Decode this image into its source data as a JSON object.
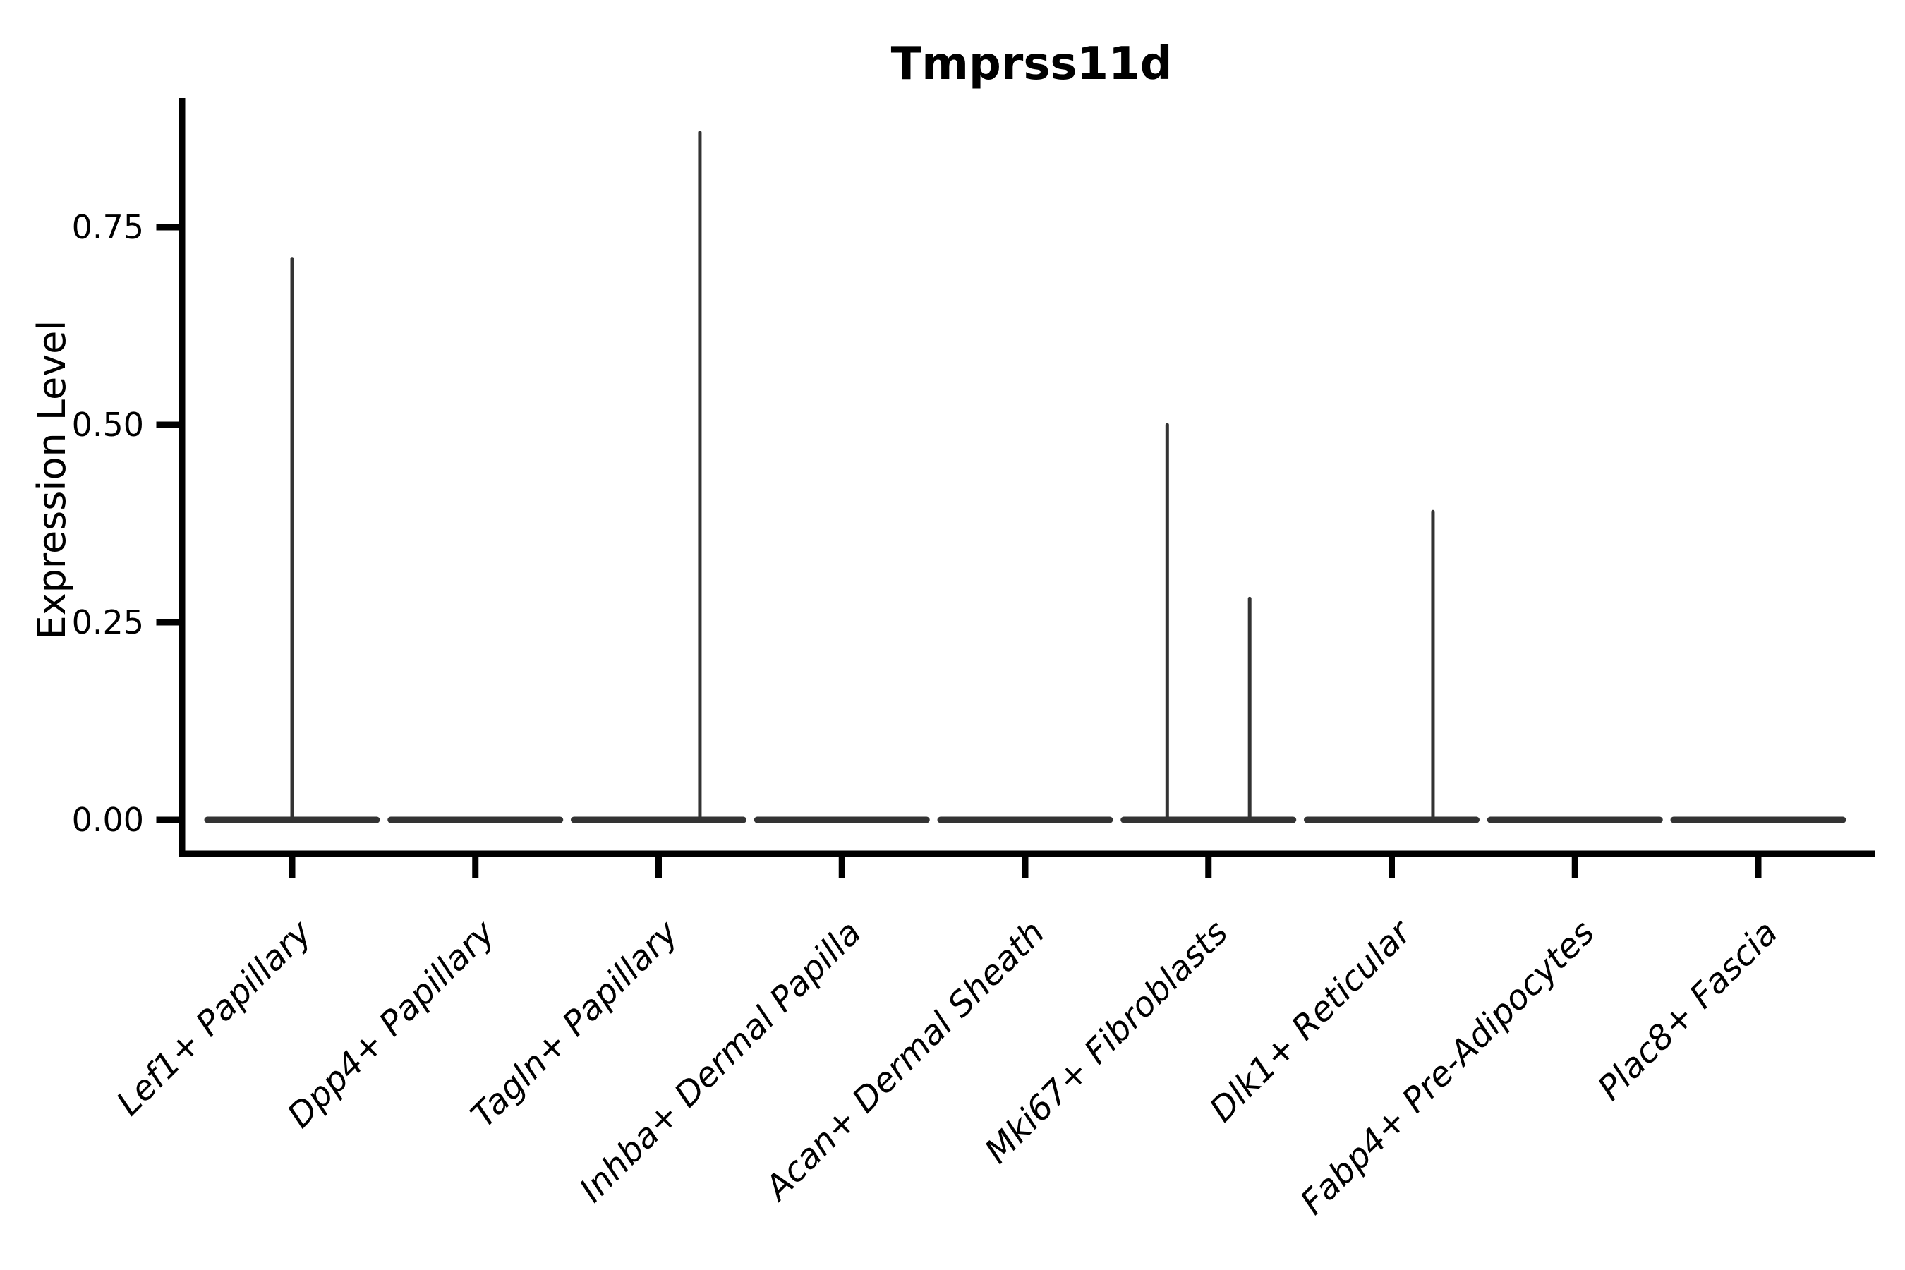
{
  "figure": {
    "title": "Tmprss11d"
  },
  "chart_data": {
    "type": "violin",
    "title": "Tmprss11d",
    "xlabel": "",
    "ylabel": "Expression Level",
    "categories": [
      "Lef1+ Papillary",
      "Dpp4+ Papillary",
      "Tagln+ Papillary",
      "Inhba+ Dermal Papilla",
      "Acan+ Dermal Sheath",
      "Mki67+ Fibroblasts",
      "Dlk1+ Reticular",
      "Fabp4+ Pre-Adipocytes",
      "Plac8+ Fascia"
    ],
    "yticks": [
      {
        "label": "0.00",
        "value": 0.0
      },
      {
        "label": "0.25",
        "value": 0.25
      },
      {
        "label": "0.50",
        "value": 0.5
      },
      {
        "label": "0.75",
        "value": 0.75
      }
    ],
    "ylim": [
      0,
      0.91
    ],
    "grid": false,
    "legend": "none",
    "violins": [
      {
        "category": "Lef1+ Papillary",
        "baseline_value": 0,
        "max_expression": 0.71,
        "spikes": [
          {
            "offset": 0,
            "value": 0.71
          }
        ]
      },
      {
        "category": "Dpp4+ Papillary",
        "baseline_value": 0,
        "max_expression": 0,
        "spikes": []
      },
      {
        "category": "Tagln+ Papillary",
        "baseline_value": 0,
        "max_expression": 0.87,
        "spikes": [
          {
            "offset": 0.225,
            "value": 0.87
          }
        ]
      },
      {
        "category": "Inhba+ Dermal Papilla",
        "baseline_value": 0,
        "max_expression": 0,
        "spikes": []
      },
      {
        "category": "Acan+ Dermal Sheath",
        "baseline_value": 0,
        "max_expression": 0,
        "spikes": []
      },
      {
        "category": "Mki67+ Fibroblasts",
        "baseline_value": 0,
        "max_expression": 0.5,
        "spikes": [
          {
            "offset": -0.225,
            "value": 0.5
          },
          {
            "offset": 0.225,
            "value": 0.28
          }
        ]
      },
      {
        "category": "Dlk1+ Reticular",
        "baseline_value": 0,
        "max_expression": 0.39,
        "spikes": [
          {
            "offset": 0.225,
            "value": 0.39
          }
        ]
      },
      {
        "category": "Fabp4+ Pre-Adipocytes",
        "baseline_value": 0,
        "max_expression": 0,
        "spikes": []
      },
      {
        "category": "Plac8+ Fascia",
        "baseline_value": 0,
        "max_expression": 0,
        "spikes": []
      }
    ],
    "colors": {
      "violin": "#333333",
      "axis": "#000000",
      "text": "#000000",
      "background": "#ffffff"
    }
  }
}
